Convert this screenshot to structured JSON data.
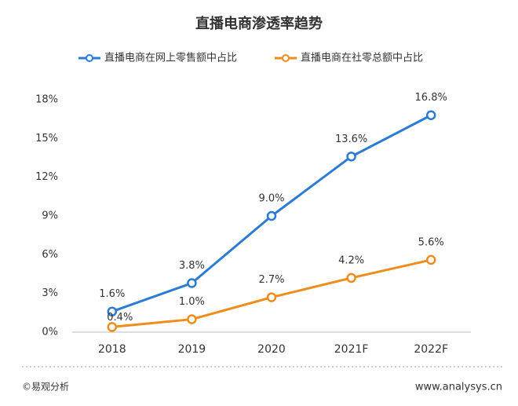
{
  "chart_data": {
    "type": "line",
    "title": "直播电商渗透率趋势",
    "categories": [
      "2018",
      "2019",
      "2020",
      "2021F",
      "2022F"
    ],
    "series": [
      {
        "name": "直播电商在网上零售额中占比",
        "color": "#2a7bd4",
        "values": [
          1.6,
          3.8,
          9.0,
          13.6,
          16.8
        ],
        "value_labels": [
          "1.6%",
          "3.8%",
          "9.0%",
          "13.6%",
          "16.8%"
        ]
      },
      {
        "name": "直播电商在社零总额中占比",
        "color": "#f08c1a",
        "values": [
          0.4,
          1.0,
          2.7,
          4.2,
          5.6
        ],
        "value_labels": [
          "0.4%",
          "1.0%",
          "2.7%",
          "4.2%",
          "5.6%"
        ]
      }
    ],
    "ylim": [
      0,
      18
    ],
    "yticks": [
      {
        "value": 0,
        "label": "0%"
      },
      {
        "value": 3,
        "label": "3%"
      },
      {
        "value": 6,
        "label": "6%"
      },
      {
        "value": 9,
        "label": "9%"
      },
      {
        "value": 12,
        "label": "12%"
      },
      {
        "value": 15,
        "label": "15%"
      },
      {
        "value": 18,
        "label": "18%"
      }
    ],
    "legend": "top",
    "footer_left": "©易观分析",
    "footer_right": "www.analysys.cn"
  }
}
